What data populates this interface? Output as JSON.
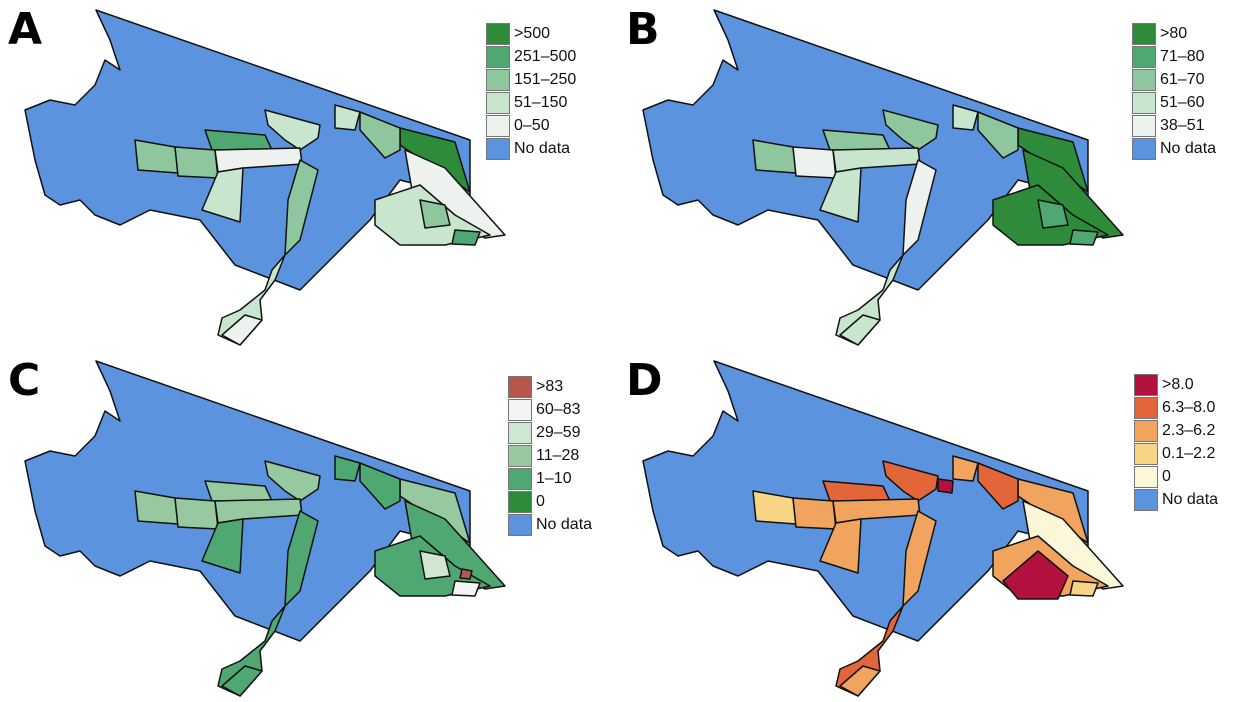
{
  "panels": [
    {
      "letter": "A",
      "legend": [
        {
          "label": ">500",
          "color": "#2e8b3a"
        },
        {
          "label": "251–500",
          "color": "#4fa872"
        },
        {
          "label": "151–250",
          "color": "#8ec79d"
        },
        {
          "label": "51–150",
          "color": "#c8e6cd"
        },
        {
          "label": "0–50",
          "color": "#eef2ee"
        },
        {
          "label": "No data",
          "color": "#5b93de"
        }
      ]
    },
    {
      "letter": "B",
      "legend": [
        {
          "label": ">80",
          "color": "#2e8b3a"
        },
        {
          "label": "71–80",
          "color": "#4fa872"
        },
        {
          "label": "61–70",
          "color": "#8ec79d"
        },
        {
          "label": "51–60",
          "color": "#c8e6cd"
        },
        {
          "label": "38–51",
          "color": "#eef2ee"
        },
        {
          "label": "No data",
          "color": "#5b93de"
        }
      ]
    },
    {
      "letter": "C",
      "legend": [
        {
          "label": ">83",
          "color": "#b5584a"
        },
        {
          "label": "60–83",
          "color": "#f4f4f4"
        },
        {
          "label": "29–59",
          "color": "#cfe7d2"
        },
        {
          "label": "11–28",
          "color": "#96c9a0"
        },
        {
          "label": "1–10",
          "color": "#4fa872"
        },
        {
          "label": "0",
          "color": "#2e8b3a"
        },
        {
          "label": "No data",
          "color": "#5b93de"
        }
      ]
    },
    {
      "letter": "D",
      "legend": [
        {
          "label": ">8.0",
          "color": "#b3123e"
        },
        {
          "label": "6.3–8.0",
          "color": "#e2663a"
        },
        {
          "label": "2.3–6.2",
          "color": "#f1a45d"
        },
        {
          "label": "0.1–2.2",
          "color": "#f8d486"
        },
        {
          "label": "0",
          "color": "#fbf7d8"
        },
        {
          "label": "No data",
          "color": "#5b93de"
        }
      ]
    }
  ]
}
